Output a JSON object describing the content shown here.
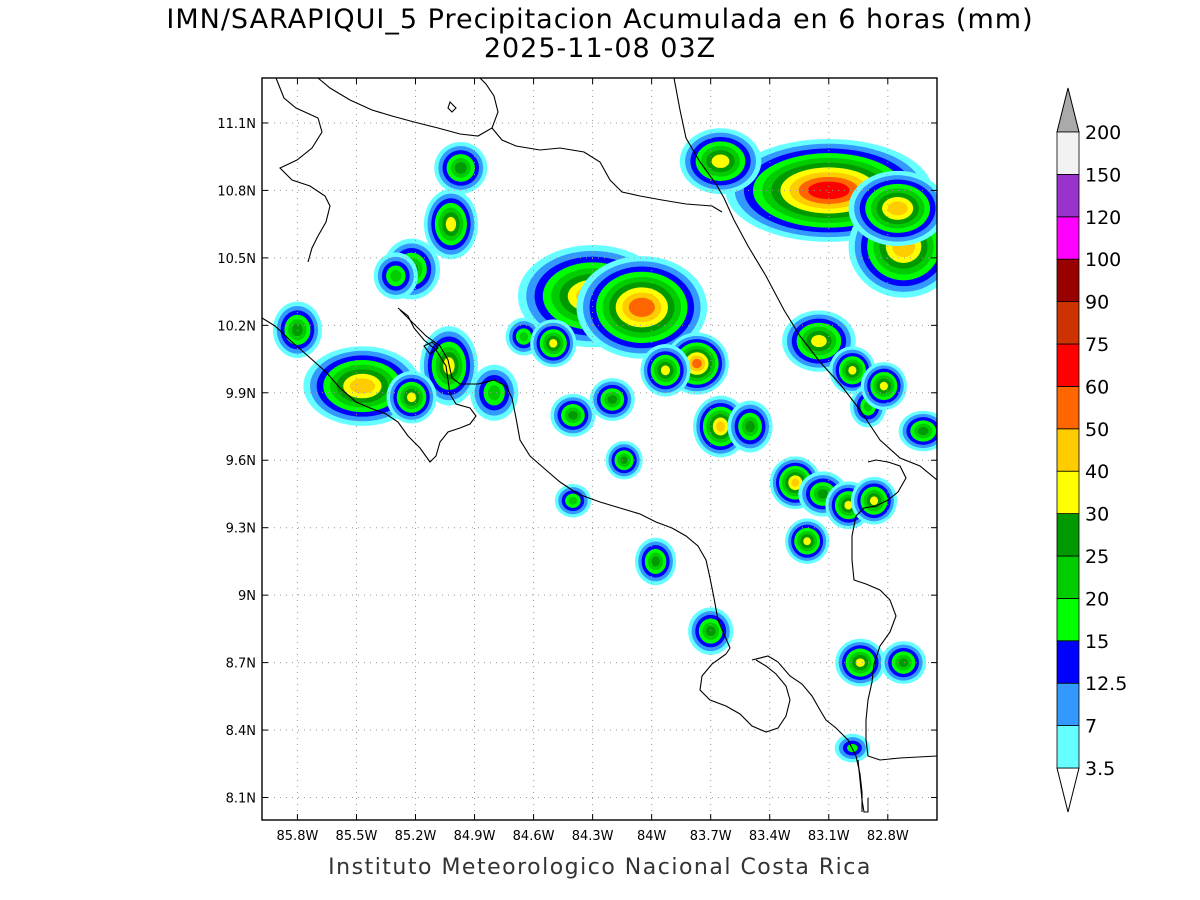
{
  "title_line1": "IMN/SARAPIQUI_5 Precipitacion Acumulada en 6 horas (mm)",
  "title_line2": "2025-11-08 03Z",
  "footer": "Instituto Meteorologico Nacional Costa Rica",
  "map": {
    "lon_range": [
      -85.98,
      -82.55
    ],
    "lat_range": [
      8.0,
      11.3
    ],
    "lat_ticks": [
      {
        "value": 11.1,
        "label": "11.1N"
      },
      {
        "value": 10.8,
        "label": "10.8N"
      },
      {
        "value": 10.5,
        "label": "10.5N"
      },
      {
        "value": 10.2,
        "label": "10.2N"
      },
      {
        "value": 9.9,
        "label": "9.9N"
      },
      {
        "value": 9.6,
        "label": "9.6N"
      },
      {
        "value": 9.3,
        "label": "9.3N"
      },
      {
        "value": 9.0,
        "label": "9N"
      },
      {
        "value": 8.7,
        "label": "8.7N"
      },
      {
        "value": 8.4,
        "label": "8.4N"
      },
      {
        "value": 8.1,
        "label": "8.1N"
      }
    ],
    "lon_ticks": [
      {
        "value": -85.8,
        "label": "85.8W"
      },
      {
        "value": -85.5,
        "label": "85.5W"
      },
      {
        "value": -85.2,
        "label": "85.2W"
      },
      {
        "value": -84.9,
        "label": "84.9W"
      },
      {
        "value": -84.6,
        "label": "84.6W"
      },
      {
        "value": -84.3,
        "label": "84.3W"
      },
      {
        "value": -84.0,
        "label": "84W"
      },
      {
        "value": -83.7,
        "label": "83.7W"
      },
      {
        "value": -83.4,
        "label": "83.4W"
      },
      {
        "value": -83.1,
        "label": "83.1W"
      },
      {
        "value": -82.8,
        "label": "82.8W"
      }
    ],
    "grid": "dotted"
  },
  "colorbar": {
    "labels": [
      "3.5",
      "7",
      "12.5",
      "15",
      "20",
      "25",
      "30",
      "40",
      "50",
      "60",
      "75",
      "90",
      "100",
      "120",
      "150",
      "200"
    ],
    "colors": [
      "#66ffff",
      "#3399ff",
      "#0000ff",
      "#00ff00",
      "#00cc00",
      "#009900",
      "#ffff00",
      "#ffcc00",
      "#ff6600",
      "#ff0000",
      "#cc3300",
      "#990000",
      "#ff00ff",
      "#9933cc",
      "#f2f2f2"
    ],
    "under_color": "#ffffff",
    "over_color": "#aaaaaa"
  },
  "precip_cells": [
    {
      "lon": -84.3,
      "lat": 10.33,
      "rx": 0.28,
      "ry": 0.14,
      "value": 45
    },
    {
      "lon": -84.05,
      "lat": 10.28,
      "rx": 0.22,
      "ry": 0.13,
      "value": 55
    },
    {
      "lon": -83.1,
      "lat": 10.8,
      "rx": 0.4,
      "ry": 0.12,
      "value": 60
    },
    {
      "lon": -82.72,
      "lat": 10.55,
      "rx": 0.18,
      "ry": 0.14,
      "value": 45
    },
    {
      "lon": -82.75,
      "lat": 10.72,
      "rx": 0.15,
      "ry": 0.08,
      "value": 40
    },
    {
      "lon": -83.65,
      "lat": 10.93,
      "rx": 0.12,
      "ry": 0.07,
      "value": 35
    },
    {
      "lon": -85.47,
      "lat": 9.93,
      "rx": 0.2,
      "ry": 0.09,
      "value": 40
    },
    {
      "lon": -85.8,
      "lat": 10.18,
      "rx": 0.05,
      "ry": 0.06,
      "value": 25
    },
    {
      "lon": -85.03,
      "lat": 10.02,
      "rx": 0.06,
      "ry": 0.1,
      "value": 30
    },
    {
      "lon": -85.22,
      "lat": 10.45,
      "rx": 0.07,
      "ry": 0.07,
      "value": 25
    },
    {
      "lon": -85.3,
      "lat": 10.42,
      "rx": 0.05,
      "ry": 0.05,
      "value": 20
    },
    {
      "lon": -85.02,
      "lat": 10.65,
      "rx": 0.05,
      "ry": 0.08,
      "value": 30
    },
    {
      "lon": -84.97,
      "lat": 10.9,
      "rx": 0.06,
      "ry": 0.05,
      "value": 25
    },
    {
      "lon": -84.8,
      "lat": 9.9,
      "rx": 0.06,
      "ry": 0.07,
      "value": 20
    },
    {
      "lon": -85.22,
      "lat": 9.88,
      "rx": 0.04,
      "ry": 0.04,
      "value": 30
    },
    {
      "lon": -83.77,
      "lat": 10.03,
      "rx": 0.05,
      "ry": 0.04,
      "value": 50
    },
    {
      "lon": -83.93,
      "lat": 10.0,
      "rx": 0.04,
      "ry": 0.04,
      "value": 30
    },
    {
      "lon": -83.65,
      "lat": 9.75,
      "rx": 0.04,
      "ry": 0.05,
      "value": 40
    },
    {
      "lon": -83.5,
      "lat": 9.75,
      "rx": 0.04,
      "ry": 0.05,
      "value": 25
    },
    {
      "lon": -83.15,
      "lat": 10.13,
      "rx": 0.1,
      "ry": 0.06,
      "value": 35
    },
    {
      "lon": -82.98,
      "lat": 10.0,
      "rx": 0.03,
      "ry": 0.03,
      "value": 30
    },
    {
      "lon": -82.9,
      "lat": 9.84,
      "rx": 0.03,
      "ry": 0.04,
      "value": 20
    },
    {
      "lon": -82.82,
      "lat": 9.93,
      "rx": 0.03,
      "ry": 0.03,
      "value": 35
    },
    {
      "lon": -82.62,
      "lat": 9.73,
      "rx": 0.05,
      "ry": 0.025,
      "value": 25
    },
    {
      "lon": -83.27,
      "lat": 9.5,
      "rx": 0.03,
      "ry": 0.03,
      "value": 40
    },
    {
      "lon": -83.13,
      "lat": 9.45,
      "rx": 0.05,
      "ry": 0.035,
      "value": 25
    },
    {
      "lon": -83.0,
      "lat": 9.4,
      "rx": 0.03,
      "ry": 0.03,
      "value": 30
    },
    {
      "lon": -82.87,
      "lat": 9.42,
      "rx": 0.03,
      "ry": 0.03,
      "value": 35
    },
    {
      "lon": -83.21,
      "lat": 9.24,
      "rx": 0.025,
      "ry": 0.025,
      "value": 35
    },
    {
      "lon": -83.98,
      "lat": 9.15,
      "rx": 0.03,
      "ry": 0.04,
      "value": 25
    },
    {
      "lon": -83.7,
      "lat": 8.84,
      "rx": 0.04,
      "ry": 0.04,
      "value": 25
    },
    {
      "lon": -82.94,
      "lat": 8.7,
      "rx": 0.04,
      "ry": 0.03,
      "value": 35
    },
    {
      "lon": -82.72,
      "lat": 8.7,
      "rx": 0.04,
      "ry": 0.03,
      "value": 25
    },
    {
      "lon": -82.98,
      "lat": 8.32,
      "rx": 0.04,
      "ry": 0.02,
      "value": 15
    },
    {
      "lon": -84.4,
      "lat": 9.8,
      "rx": 0.04,
      "ry": 0.03,
      "value": 25
    },
    {
      "lon": -84.2,
      "lat": 9.87,
      "rx": 0.04,
      "ry": 0.03,
      "value": 25
    },
    {
      "lon": -84.14,
      "lat": 9.6,
      "rx": 0.02,
      "ry": 0.02,
      "value": 25
    },
    {
      "lon": -84.4,
      "lat": 9.42,
      "rx": 0.03,
      "ry": 0.02,
      "value": 20
    },
    {
      "lon": -84.65,
      "lat": 10.15,
      "rx": 0.03,
      "ry": 0.03,
      "value": 20
    },
    {
      "lon": -84.5,
      "lat": 10.12,
      "rx": 0.03,
      "ry": 0.03,
      "value": 30
    }
  ]
}
